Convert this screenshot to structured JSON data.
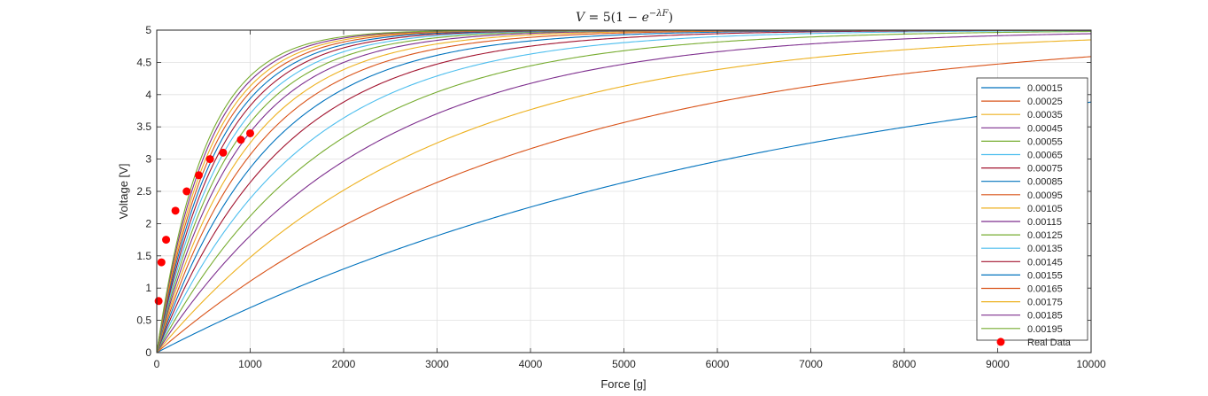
{
  "chart_data": {
    "type": "line",
    "title": "V = 5(1 − e^{−λF})",
    "title_parts": {
      "lhs": "V",
      "mid": " = 5(1 − ",
      "base": "e",
      "exp": "−λF",
      "close": ")"
    },
    "xlabel": "Force [g]",
    "ylabel": "Voltage [V]",
    "xlim": [
      0,
      10000
    ],
    "ylim": [
      0,
      5
    ],
    "x_ticks": [
      0,
      1000,
      2000,
      3000,
      4000,
      5000,
      6000,
      7000,
      8000,
      9000,
      10000
    ],
    "y_ticks": [
      0,
      0.5,
      1,
      1.5,
      2,
      2.5,
      3,
      3.5,
      4,
      4.5,
      5
    ],
    "grid": true,
    "legend_position": "right",
    "model": {
      "amplitude": 5
    },
    "series": [
      {
        "name": "0.00015",
        "lambda": 0.00015,
        "color": "#0072BD"
      },
      {
        "name": "0.00025",
        "lambda": 0.00025,
        "color": "#D95319"
      },
      {
        "name": "0.00035",
        "lambda": 0.00035,
        "color": "#EDB120"
      },
      {
        "name": "0.00045",
        "lambda": 0.00045,
        "color": "#7E2F8E"
      },
      {
        "name": "0.00055",
        "lambda": 0.00055,
        "color": "#77AC30"
      },
      {
        "name": "0.00065",
        "lambda": 0.00065,
        "color": "#4DBEEE"
      },
      {
        "name": "0.00075",
        "lambda": 0.00075,
        "color": "#A2142F"
      },
      {
        "name": "0.00085",
        "lambda": 0.00085,
        "color": "#0072BD"
      },
      {
        "name": "0.00095",
        "lambda": 0.00095,
        "color": "#D95319"
      },
      {
        "name": "0.00105",
        "lambda": 0.00105,
        "color": "#EDB120"
      },
      {
        "name": "0.00115",
        "lambda": 0.00115,
        "color": "#7E2F8E"
      },
      {
        "name": "0.00125",
        "lambda": 0.00125,
        "color": "#77AC30"
      },
      {
        "name": "0.00135",
        "lambda": 0.00135,
        "color": "#4DBEEE"
      },
      {
        "name": "0.00145",
        "lambda": 0.00145,
        "color": "#A2142F"
      },
      {
        "name": "0.00155",
        "lambda": 0.00155,
        "color": "#0072BD"
      },
      {
        "name": "0.00165",
        "lambda": 0.00165,
        "color": "#D95319"
      },
      {
        "name": "0.00175",
        "lambda": 0.00175,
        "color": "#EDB120"
      },
      {
        "name": "0.00185",
        "lambda": 0.00185,
        "color": "#7E2F8E"
      },
      {
        "name": "0.00195",
        "lambda": 0.00195,
        "color": "#77AC30"
      }
    ],
    "real_data": {
      "name": "Real Data",
      "color": "#FF0000",
      "points": [
        {
          "x": 20,
          "y": 0.8
        },
        {
          "x": 50,
          "y": 1.4
        },
        {
          "x": 100,
          "y": 1.75
        },
        {
          "x": 200,
          "y": 2.2
        },
        {
          "x": 320,
          "y": 2.5
        },
        {
          "x": 450,
          "y": 2.75
        },
        {
          "x": 570,
          "y": 3.0
        },
        {
          "x": 710,
          "y": 3.1
        },
        {
          "x": 900,
          "y": 3.3
        },
        {
          "x": 1000,
          "y": 3.4
        }
      ]
    }
  }
}
